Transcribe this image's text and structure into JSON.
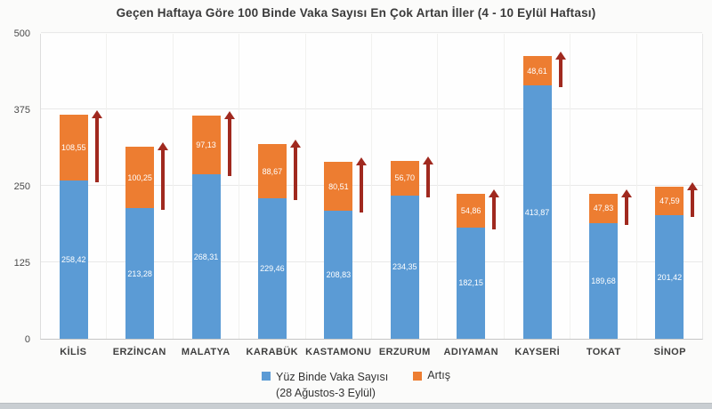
{
  "title": "Geçen Haftaya Göre 100 Binde Vaka Sayısı En Çok Artan İller (4 - 10 Eylül Haftası)",
  "colors": {
    "vaka_blue": "#5b9bd5",
    "artis_orange": "#ed7d31",
    "arrow_red": "#a0291f"
  },
  "legend": {
    "vaka_label": "Yüz Binde Vaka Sayısı",
    "vaka_sublabel": "(28 Ağustos-3 Eylül)",
    "artis_label": "Artış"
  },
  "chart_data": {
    "type": "bar",
    "stacked": true,
    "title": "Geçen Haftaya Göre 100 Binde Vaka Sayısı En Çok Artan İller (4 - 10 Eylül Haftası)",
    "categories": [
      "KİLİS",
      "ERZİNCAN",
      "MALATYA",
      "KARABÜK",
      "KASTAMONU",
      "ERZURUM",
      "ADIYAMAN",
      "KAYSERİ",
      "TOKAT",
      "SİNOP"
    ],
    "series": [
      {
        "name": "Yüz Binde Vaka Sayısı (28 Ağustos-3 Eylül)",
        "values": [
          258.42,
          213.28,
          268.31,
          229.46,
          208.83,
          234.35,
          182.15,
          413.87,
          189.68,
          201.42
        ],
        "labels": [
          "258,42",
          "213,28",
          "268,31",
          "229,46",
          "208,83",
          "234,35",
          "182,15",
          "413,87",
          "189,68",
          "201,42"
        ]
      },
      {
        "name": "Artış",
        "values": [
          108.55,
          100.25,
          97.13,
          88.67,
          80.51,
          56.7,
          54.86,
          48.61,
          47.83,
          47.59
        ],
        "labels": [
          "108,55",
          "100,25",
          "97,13",
          "88,67",
          "80,51",
          "56,70",
          "54,86",
          "48,61",
          "47,83",
          "47,59"
        ]
      }
    ],
    "ylim": [
      0,
      500
    ],
    "yticks": [
      0,
      125,
      250,
      375,
      500
    ],
    "ytick_labels": [
      "0",
      "125",
      "250",
      "375",
      "500"
    ],
    "xlabel": "",
    "ylabel": "",
    "grid": true,
    "legend_position": "bottom",
    "annotations": "dark red upward arrow beside each bar spanning the Artış segment"
  }
}
